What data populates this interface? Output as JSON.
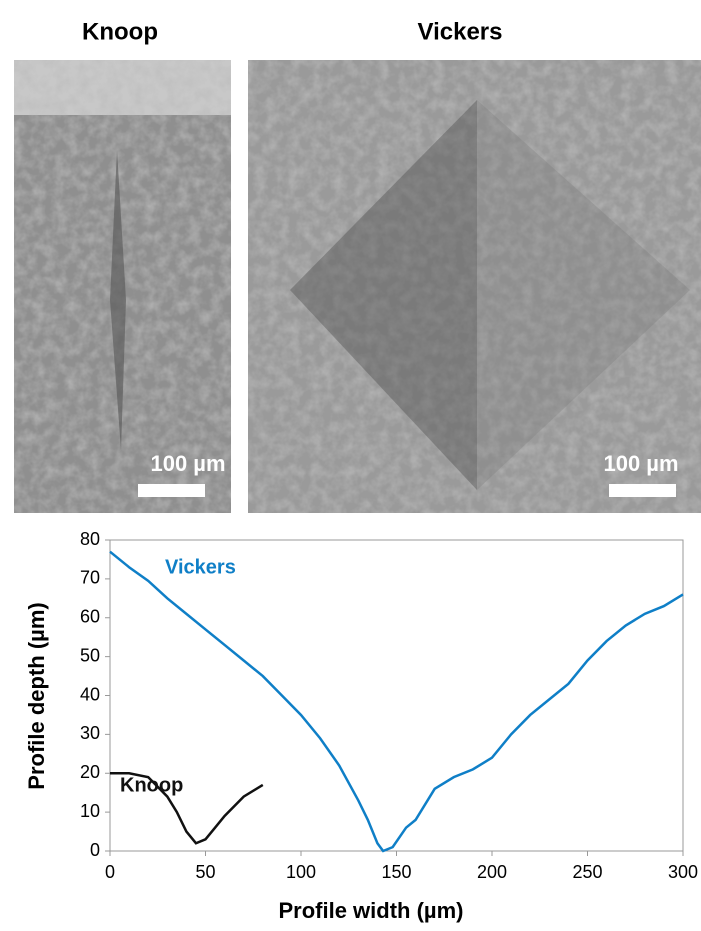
{
  "panels": [
    {
      "title": "Knoop",
      "scale_label": "100 µm"
    },
    {
      "title": "Vickers",
      "scale_label": "100 µm"
    }
  ],
  "chart_data": {
    "type": "line",
    "x_label": "Profile width (µm)",
    "y_label": "Profile depth (µm)",
    "xlim": [
      0,
      300
    ],
    "xticks": [
      0,
      50,
      100,
      150,
      200,
      250,
      300
    ],
    "ylim": [
      0,
      80
    ],
    "yticks": [
      0,
      10,
      20,
      30,
      40,
      50,
      60,
      70,
      80
    ],
    "series": [
      {
        "name": "Vickers",
        "color": "#0f7fc7",
        "x": [
          0,
          10,
          20,
          30,
          40,
          50,
          60,
          70,
          80,
          90,
          100,
          110,
          120,
          130,
          135,
          140,
          143,
          148,
          155,
          160,
          170,
          180,
          190,
          200,
          210,
          220,
          230,
          240,
          250,
          260,
          270,
          280,
          290,
          300
        ],
        "values": [
          77,
          73,
          69.5,
          65,
          61,
          57,
          53,
          49,
          45,
          40,
          35,
          29,
          22,
          13,
          8,
          2,
          0,
          1,
          6,
          8,
          16,
          19,
          21,
          24,
          30,
          35,
          39,
          43,
          49,
          54,
          58,
          61,
          63,
          66
        ]
      },
      {
        "name": "Knoop",
        "color": "#111111",
        "x": [
          0,
          10,
          20,
          30,
          35,
          40,
          45,
          50,
          55,
          60,
          70,
          80
        ],
        "values": [
          20,
          20,
          19,
          14,
          10,
          5,
          2,
          3,
          6,
          9,
          14,
          17
        ]
      }
    ]
  }
}
